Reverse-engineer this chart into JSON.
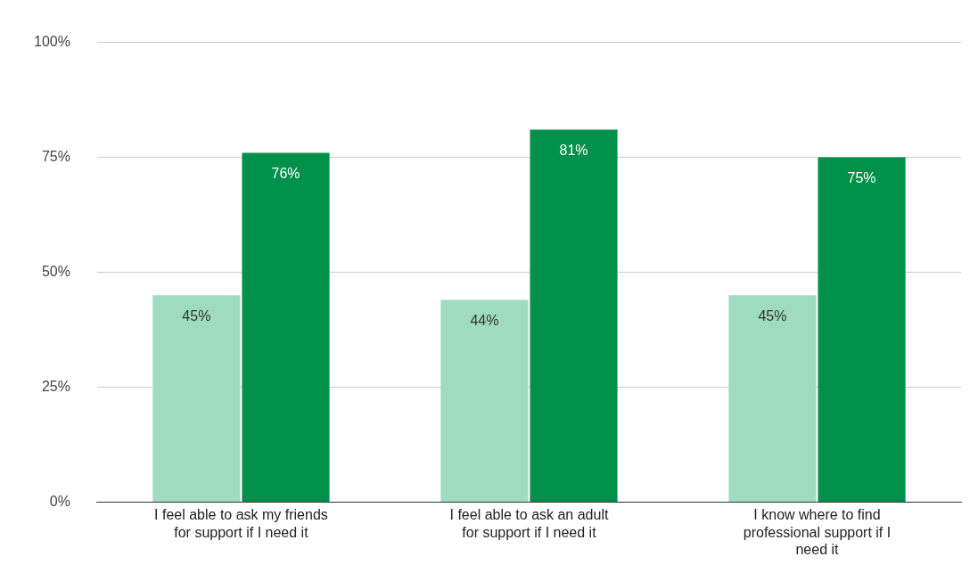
{
  "chart_data": {
    "type": "bar",
    "categories": [
      "I feel able to ask my friends for support if I need it",
      "I feel able to ask an adult for support if I need it",
      "I know where to find professional support if I need it"
    ],
    "series": [
      {
        "color": "#9fdcbf",
        "values": [
          45,
          44,
          45
        ]
      },
      {
        "color": "#00904a",
        "values": [
          76,
          81,
          75
        ]
      }
    ],
    "ylim": [
      0,
      100
    ],
    "yticks": [
      {
        "value": 0,
        "label": "0%"
      },
      {
        "value": 25,
        "label": "25%"
      },
      {
        "value": 50,
        "label": "50%"
      },
      {
        "value": 75,
        "label": "75%"
      },
      {
        "value": 100,
        "label": "100%"
      }
    ],
    "value_labels": [
      [
        "45%",
        "44%",
        "45%"
      ],
      [
        "76%",
        "81%",
        "75%"
      ]
    ],
    "grid": "y",
    "legend": false
  }
}
